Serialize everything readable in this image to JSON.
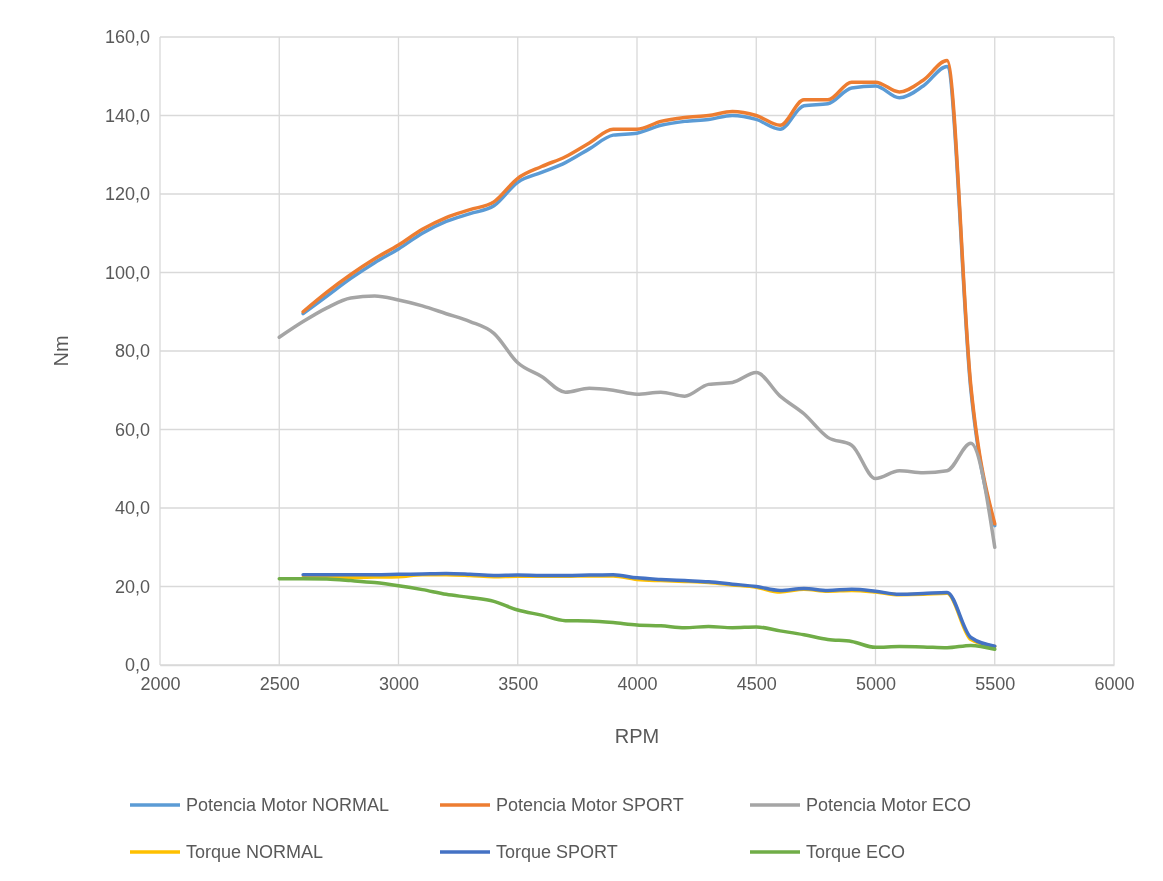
{
  "chart_data": {
    "type": "line",
    "xlabel": "RPM",
    "ylabel": "Nm",
    "xlim": [
      2000,
      6000
    ],
    "xticks": [
      2000,
      2500,
      3000,
      3500,
      4000,
      4500,
      5000,
      5500,
      6000
    ],
    "ylim": [
      0,
      160
    ],
    "yticks": [
      {
        "value": 0,
        "label": "0,0"
      },
      {
        "value": 20,
        "label": "20,0"
      },
      {
        "value": 40,
        "label": "40,0"
      },
      {
        "value": 60,
        "label": "60,0"
      },
      {
        "value": 80,
        "label": "80,0"
      },
      {
        "value": 100,
        "label": "100,0"
      },
      {
        "value": 120,
        "label": "120,0"
      },
      {
        "value": 140,
        "label": "140,0"
      },
      {
        "value": 160,
        "label": "160,0"
      }
    ],
    "grid": true,
    "legend": "bottom",
    "marker": "none",
    "line_style": "solid",
    "series": [
      {
        "name": "Potencia Motor NORMAL",
        "color": "#5b9bd5",
        "x": [
          2600,
          2700,
          2800,
          2900,
          3000,
          3100,
          3200,
          3300,
          3400,
          3500,
          3600,
          3700,
          3800,
          3900,
          4000,
          4100,
          4200,
          4300,
          4400,
          4500,
          4600,
          4700,
          4800,
          4900,
          5000,
          5100,
          5200,
          5300,
          5400,
          5500
        ],
        "values": [
          89.5,
          94,
          98.5,
          102.5,
          106,
          110,
          113,
          115,
          117,
          123,
          125.5,
          128,
          131.5,
          135,
          135.5,
          137.5,
          138.5,
          139,
          140,
          139,
          136.5,
          142.5,
          143,
          147,
          147.5,
          144.5,
          147.5,
          152.5,
          70,
          35.5
        ]
      },
      {
        "name": "Potencia Motor SPORT",
        "color": "#ed7d31",
        "x": [
          2600,
          2700,
          2800,
          2900,
          3000,
          3100,
          3200,
          3300,
          3400,
          3500,
          3600,
          3700,
          3800,
          3900,
          4000,
          4100,
          4200,
          4300,
          4400,
          4500,
          4600,
          4700,
          4800,
          4900,
          5000,
          5100,
          5200,
          5300,
          5400,
          5500
        ],
        "values": [
          90,
          95,
          99.5,
          103.5,
          107,
          111,
          114,
          116,
          118,
          124,
          127,
          129.5,
          133,
          136.5,
          136.5,
          138.5,
          139.5,
          140,
          141,
          140,
          137.5,
          144,
          144,
          148.5,
          148.5,
          146,
          149,
          154,
          71,
          36
        ]
      },
      {
        "name": "Potencia Motor ECO",
        "color": "#a5a5a5",
        "x": [
          2500,
          2600,
          2700,
          2800,
          2900,
          3000,
          3100,
          3200,
          3300,
          3400,
          3500,
          3600,
          3700,
          3800,
          3900,
          4000,
          4100,
          4200,
          4300,
          4400,
          4500,
          4600,
          4700,
          4800,
          4900,
          5000,
          5100,
          5200,
          5300,
          5400,
          5500
        ],
        "values": [
          83.5,
          87.5,
          91,
          93.5,
          94,
          93,
          91.5,
          89.5,
          87.5,
          84.5,
          77,
          73.5,
          69.5,
          70.5,
          70,
          69,
          69.5,
          68.5,
          71.5,
          72,
          74.5,
          68.5,
          64,
          58,
          56,
          47.5,
          49.5,
          49,
          49.5,
          56.5,
          30
        ]
      },
      {
        "name": "Torque NORMAL",
        "color": "#ffc000",
        "x": [
          2600,
          2700,
          2800,
          2900,
          3000,
          3100,
          3200,
          3300,
          3400,
          3500,
          3600,
          3700,
          3800,
          3900,
          4000,
          4100,
          4200,
          4300,
          4400,
          4500,
          4600,
          4700,
          4800,
          4900,
          5000,
          5100,
          5200,
          5300,
          5400,
          5500
        ],
        "values": [
          22.3,
          22.3,
          22.3,
          22.4,
          22.5,
          23,
          23,
          22.8,
          22.5,
          22.6,
          22.6,
          22.6,
          22.7,
          22.7,
          21.8,
          21.5,
          21.3,
          21,
          20.4,
          19.8,
          18.6,
          19.3,
          18.8,
          19,
          18.6,
          17.9,
          18,
          18.3,
          6.5,
          4.7
        ]
      },
      {
        "name": "Torque SPORT",
        "color": "#4472c4",
        "x": [
          2600,
          2700,
          2800,
          2900,
          3000,
          3100,
          3200,
          3300,
          3400,
          3500,
          3600,
          3700,
          3800,
          3900,
          4000,
          4100,
          4200,
          4300,
          4400,
          4500,
          4600,
          4700,
          4800,
          4900,
          5000,
          5100,
          5200,
          5300,
          5400,
          5500
        ],
        "values": [
          23,
          23,
          23,
          23,
          23.1,
          23.2,
          23.3,
          23.1,
          22.8,
          22.9,
          22.8,
          22.8,
          22.9,
          23,
          22.2,
          21.8,
          21.5,
          21.2,
          20.6,
          20,
          19,
          19.5,
          19,
          19.3,
          18.8,
          18,
          18.2,
          18.5,
          7,
          4.8
        ]
      },
      {
        "name": "Torque ECO",
        "color": "#70ad47",
        "x": [
          2500,
          2600,
          2700,
          2800,
          2900,
          3000,
          3100,
          3200,
          3300,
          3400,
          3500,
          3600,
          3700,
          3800,
          3900,
          4000,
          4100,
          4200,
          4300,
          4400,
          4500,
          4600,
          4700,
          4800,
          4900,
          5000,
          5100,
          5200,
          5300,
          5400,
          5500
        ],
        "values": [
          22,
          22,
          21.9,
          21.5,
          21,
          20.2,
          19.2,
          18,
          17.2,
          16.2,
          14,
          12.7,
          11.3,
          11.2,
          10.8,
          10.2,
          10,
          9.5,
          9.8,
          9.5,
          9.7,
          8.7,
          7.7,
          6.5,
          6,
          4.5,
          4.7,
          4.6,
          4.4,
          5,
          4
        ]
      }
    ]
  }
}
